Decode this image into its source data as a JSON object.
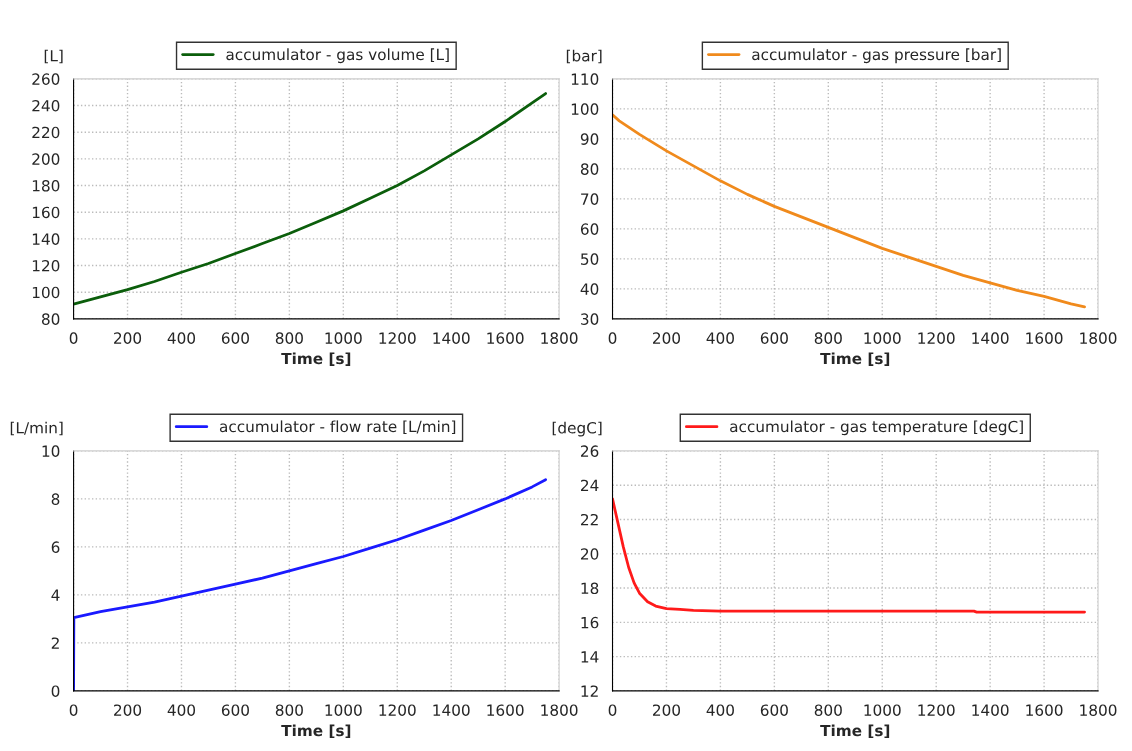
{
  "chart_data": [
    {
      "type": "line",
      "xlabel": "Time [s]",
      "ylabel": "[L]",
      "x": [
        0,
        100,
        200,
        300,
        400,
        500,
        600,
        700,
        800,
        900,
        1000,
        1100,
        1200,
        1300,
        1400,
        1500,
        1600,
        1700,
        1750
      ],
      "series": [
        {
          "name": "accumulator - gas volume [L]",
          "color": "#0b5e0b",
          "values": [
            91,
            96.5,
            102,
            108,
            115,
            121.5,
            129,
            136.5,
            144,
            152.5,
            161,
            170.5,
            180,
            191,
            203,
            215,
            228,
            242,
            249
          ]
        }
      ],
      "xlim": [
        0,
        1800
      ],
      "xticks": [
        0,
        200,
        400,
        600,
        800,
        1000,
        1200,
        1400,
        1600,
        1800
      ],
      "ylim": [
        80,
        260
      ],
      "yticks": [
        80,
        100,
        120,
        140,
        160,
        180,
        200,
        220,
        240,
        260
      ],
      "grid": true,
      "legend": "top",
      "marker": "none",
      "line_style": "solid"
    },
    {
      "type": "line",
      "xlabel": "Time [s]",
      "ylabel": "[bar]",
      "x": [
        0,
        25,
        50,
        100,
        200,
        300,
        400,
        500,
        600,
        700,
        800,
        900,
        1000,
        1100,
        1200,
        1300,
        1400,
        1500,
        1600,
        1700,
        1750
      ],
      "series": [
        {
          "name": "accumulator - gas pressure [bar]",
          "color": "#f08a1c",
          "values": [
            98,
            96,
            94.5,
            91.5,
            86,
            81,
            76,
            71.5,
            67.5,
            64,
            60.5,
            57,
            53.5,
            50.5,
            47.5,
            44.5,
            42,
            39.5,
            37.5,
            35,
            34
          ]
        }
      ],
      "xlim": [
        0,
        1800
      ],
      "xticks": [
        0,
        200,
        400,
        600,
        800,
        1000,
        1200,
        1400,
        1600,
        1800
      ],
      "ylim": [
        30,
        110
      ],
      "yticks": [
        30,
        40,
        50,
        60,
        70,
        80,
        90,
        100,
        110
      ],
      "grid": true,
      "legend": "top",
      "marker": "none",
      "line_style": "solid"
    },
    {
      "type": "line",
      "xlabel": "Time [s]",
      "ylabel": "[L/min]",
      "x": [
        0,
        1,
        100,
        200,
        300,
        400,
        500,
        600,
        700,
        800,
        900,
        1000,
        1100,
        1200,
        1300,
        1400,
        1500,
        1600,
        1700,
        1750
      ],
      "series": [
        {
          "name": "accumulator - flow rate [L/min]",
          "color": "#1a1aff",
          "values": [
            0,
            3.05,
            3.3,
            3.5,
            3.7,
            3.95,
            4.2,
            4.45,
            4.7,
            5.0,
            5.3,
            5.6,
            5.95,
            6.3,
            6.7,
            7.1,
            7.55,
            8.0,
            8.5,
            8.8
          ]
        }
      ],
      "xlim": [
        0,
        1800
      ],
      "xticks": [
        0,
        200,
        400,
        600,
        800,
        1000,
        1200,
        1400,
        1600,
        1800
      ],
      "ylim": [
        0,
        10
      ],
      "yticks": [
        0,
        2,
        4,
        6,
        8,
        10
      ],
      "grid": true,
      "legend": "top",
      "marker": "none",
      "line_style": "solid"
    },
    {
      "type": "line",
      "xlabel": "Time [s]",
      "ylabel": "[degC]",
      "x": [
        0,
        20,
        40,
        60,
        80,
        100,
        130,
        160,
        200,
        250,
        300,
        400,
        800,
        1340,
        1350,
        1750
      ],
      "series": [
        {
          "name": "accumulator - gas temperature [degC]",
          "color": "#ff1a1a",
          "values": [
            23.2,
            21.8,
            20.4,
            19.2,
            18.3,
            17.7,
            17.2,
            16.95,
            16.8,
            16.75,
            16.7,
            16.65,
            16.65,
            16.65,
            16.6,
            16.6
          ]
        }
      ],
      "xlim": [
        0,
        1800
      ],
      "xticks": [
        0,
        200,
        400,
        600,
        800,
        1000,
        1200,
        1400,
        1600,
        1800
      ],
      "ylim": [
        12,
        26
      ],
      "yticks": [
        12,
        14,
        16,
        18,
        20,
        22,
        24,
        26
      ],
      "grid": true,
      "legend": "top",
      "marker": "none",
      "line_style": "solid"
    }
  ]
}
